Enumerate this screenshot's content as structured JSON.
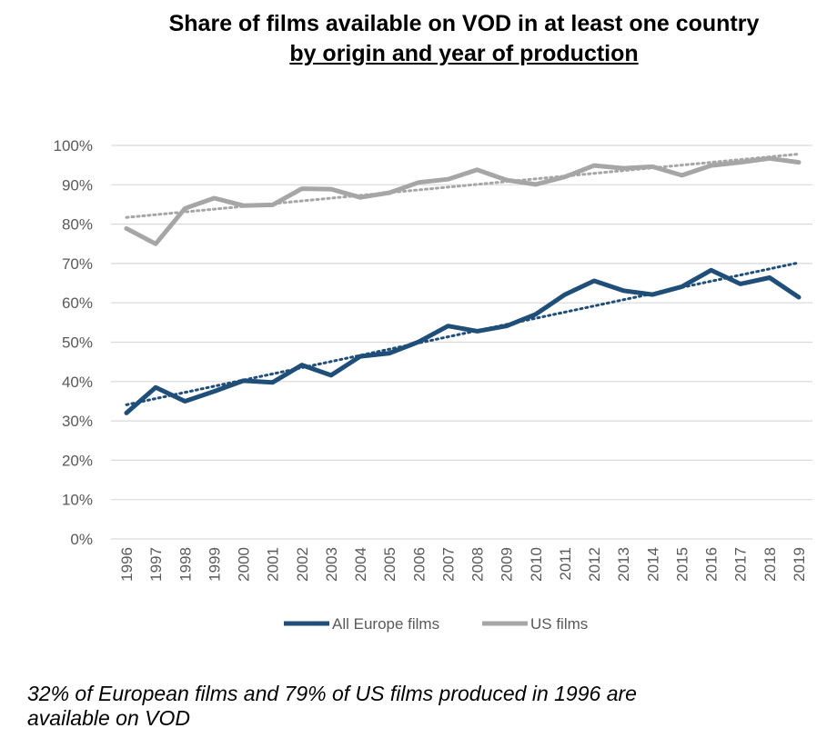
{
  "chart_data": {
    "type": "line",
    "title": "Share of films available on VOD in at least one country",
    "subtitle": "by origin and year of production",
    "xlabel": "",
    "ylabel": "",
    "ylim": [
      0,
      100
    ],
    "y_ticks": [
      "0%",
      "10%",
      "20%",
      "30%",
      "40%",
      "50%",
      "60%",
      "70%",
      "80%",
      "90%",
      "100%"
    ],
    "x": [
      "1996",
      "1997",
      "1998",
      "1999",
      "2000",
      "2001",
      "2002",
      "2003",
      "2004",
      "2005",
      "2006",
      "2007",
      "2008",
      "2009",
      "2010",
      "2011",
      "2012",
      "2013",
      "2014",
      "2015",
      "2016",
      "2017",
      "2018",
      "2019"
    ],
    "grid": true,
    "legend_position": "bottom",
    "series": [
      {
        "name": "All Europe films",
        "color": "#1f4e79",
        "values": [
          32,
          38.5,
          35,
          37.5,
          40.2,
          39.8,
          44.2,
          41.6,
          46.4,
          47.2,
          50.1,
          54.1,
          52.8,
          54.1,
          57.1,
          62.1,
          65.6,
          63.1,
          62.1,
          64.1,
          68.3,
          64.8,
          66.4,
          61.4
        ],
        "trend": [
          34.1,
          70.2
        ]
      },
      {
        "name": "US films",
        "color": "#a6a6a6",
        "values": [
          78.9,
          75,
          84,
          86.6,
          84.7,
          84.9,
          89,
          88.9,
          86.8,
          88,
          90.6,
          91.4,
          93.8,
          91.2,
          90.1,
          92,
          94.9,
          94.2,
          94.6,
          92.4,
          94.9,
          95.7,
          96.7,
          95.7
        ],
        "trend": [
          81.7,
          97.8
        ]
      }
    ]
  },
  "note": "32% of European films and 79% of US films produced in 1996 are available on VOD"
}
